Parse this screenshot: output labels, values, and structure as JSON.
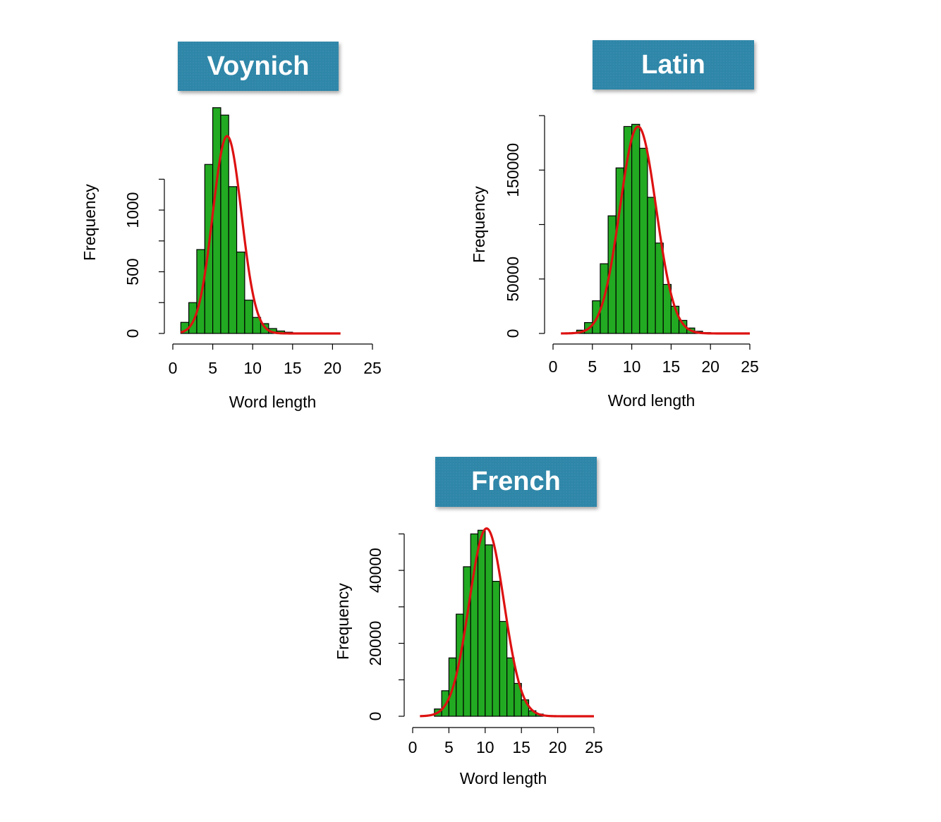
{
  "colors": {
    "bar_fill": "#22aa22",
    "bar_stroke": "#000000",
    "curve": "#dd1111",
    "badge": "#2e86a8"
  },
  "chart_data": [
    {
      "type": "bar",
      "title": "Voynich",
      "xlabel": "Word length",
      "ylabel": "Frequency",
      "xlim": [
        0,
        25
      ],
      "ylim": [
        0,
        1800
      ],
      "x_ticks": [
        "0",
        "5",
        "10",
        "15",
        "20",
        "25"
      ],
      "y_ticks": [
        "0",
        "500",
        "1000"
      ],
      "y_tick_values": [
        0,
        500,
        1000
      ],
      "y_minor_ticks": [
        250,
        750,
        1250,
        1500
      ],
      "bins": [
        1,
        2,
        3,
        4,
        5,
        6,
        7,
        8,
        9,
        10,
        11,
        12,
        13,
        14,
        15
      ],
      "bin_width": 1,
      "values": [
        90,
        250,
        680,
        1370,
        1830,
        1770,
        1190,
        660,
        270,
        130,
        80,
        40,
        20,
        10,
        5
      ],
      "curve": {
        "name": "normal fit",
        "mean": 6.8,
        "sd": 1.8,
        "peak": 1600,
        "x_range": [
          1,
          21
        ]
      }
    },
    {
      "type": "bar",
      "title": "Latin",
      "xlabel": "Word length",
      "ylabel": "Frequency",
      "xlim": [
        0,
        25
      ],
      "ylim": [
        0,
        200000
      ],
      "x_ticks": [
        "0",
        "5",
        "10",
        "15",
        "20",
        "25"
      ],
      "y_ticks": [
        "0",
        "50000",
        "150000"
      ],
      "y_tick_values": [
        0,
        50000,
        150000
      ],
      "y_minor_ticks": [
        100000,
        200000
      ],
      "bins": [
        3,
        4,
        5,
        6,
        7,
        8,
        9,
        10,
        11,
        12,
        13,
        14,
        15,
        16,
        17,
        18,
        19
      ],
      "bin_width": 1,
      "values": [
        3000,
        10000,
        30000,
        64000,
        108000,
        152000,
        190000,
        192000,
        170000,
        125000,
        83000,
        45000,
        25000,
        12000,
        5000,
        2000,
        800
      ],
      "curve": {
        "name": "normal fit",
        "mean": 10.8,
        "sd": 2.3,
        "peak": 190000,
        "x_range": [
          1,
          25
        ]
      }
    },
    {
      "type": "bar",
      "title": "French",
      "xlabel": "Word length",
      "ylabel": "Frequency",
      "xlim": [
        0,
        25
      ],
      "ylim": [
        0,
        52000
      ],
      "x_ticks": [
        "0",
        "5",
        "10",
        "15",
        "20",
        "25"
      ],
      "y_ticks": [
        "0",
        "20000",
        "40000"
      ],
      "y_tick_values": [
        0,
        20000,
        40000
      ],
      "y_minor_ticks": [
        10000,
        30000,
        50000
      ],
      "bins": [
        3,
        4,
        5,
        6,
        7,
        8,
        9,
        10,
        11,
        12,
        13,
        14,
        15,
        16,
        17
      ],
      "bin_width": 1,
      "values": [
        2000,
        7000,
        16000,
        28000,
        41000,
        50000,
        51000,
        47000,
        37000,
        26000,
        16000,
        9000,
        4500,
        1500,
        600
      ],
      "curve": {
        "name": "normal fit",
        "mean": 10.2,
        "sd": 2.4,
        "peak": 51500,
        "x_range": [
          1,
          25
        ]
      }
    }
  ]
}
